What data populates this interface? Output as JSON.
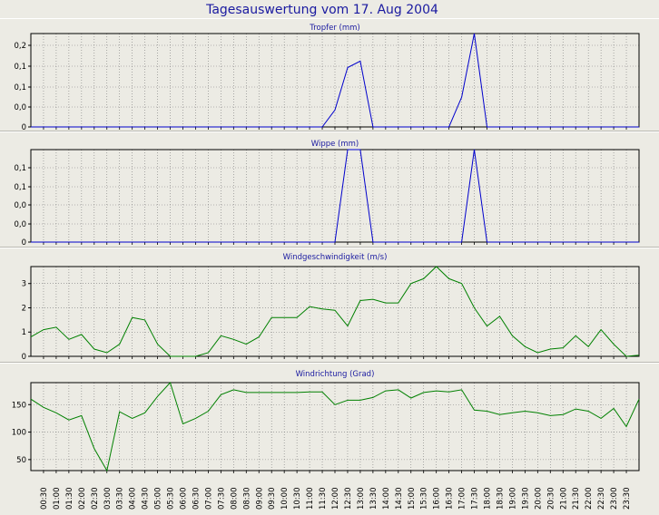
{
  "page_title": "Tagesauswertung vom 17. Aug 2004",
  "x_ticks": [
    "00:30",
    "01:00",
    "01:30",
    "02:00",
    "02:30",
    "03:00",
    "03:30",
    "04:00",
    "04:30",
    "05:00",
    "05:30",
    "06:00",
    "06:30",
    "07:00",
    "07:30",
    "08:00",
    "08:30",
    "09:00",
    "09:30",
    "10:00",
    "10:30",
    "11:00",
    "11:30",
    "12:00",
    "12:30",
    "13:00",
    "13:30",
    "14:00",
    "14:30",
    "15:00",
    "15:30",
    "16:00",
    "16:30",
    "17:00",
    "17:30",
    "18:00",
    "18:30",
    "19:00",
    "19:30",
    "20:00",
    "20:30",
    "21:00",
    "21:30",
    "22:00",
    "22:30",
    "23:00",
    "23:30"
  ],
  "colors": {
    "blue_series": "#0000cc",
    "green_series": "#008000",
    "title": "#1a1aa0",
    "panel_bg": "#ecebe4",
    "axis": "#000000",
    "grid": "#7a7a7a"
  },
  "chart_data": [
    {
      "type": "line",
      "title": "Tropfer (mm)",
      "y_tick_labels": [
        "0,2",
        "0,1",
        "0,1",
        "0,0",
        "0"
      ],
      "ylim": [
        0,
        0.22
      ],
      "grid": true,
      "x_unit": "hour_of_day",
      "series": [
        {
          "color": "#0000cc",
          "points": [
            [
              0,
              0
            ],
            [
              11.5,
              0
            ],
            [
              12,
              0.04
            ],
            [
              12.5,
              0.14
            ],
            [
              13,
              0.155
            ],
            [
              13.5,
              0
            ],
            [
              16.5,
              0
            ],
            [
              17,
              0.07
            ],
            [
              17.5,
              0.22
            ],
            [
              18,
              0
            ],
            [
              24,
              0
            ]
          ]
        }
      ]
    },
    {
      "type": "line",
      "title": "Wippe (mm)",
      "y_tick_labels": [
        "0,1",
        "0,1",
        "0,0",
        "0,0",
        "0"
      ],
      "ylim": [
        0,
        0.2
      ],
      "grid": true,
      "x_unit": "hour_of_day",
      "series": [
        {
          "color": "#0000cc",
          "points": [
            [
              0,
              0
            ],
            [
              12,
              0
            ],
            [
              12.5,
              0.2
            ],
            [
              13,
              0.2
            ],
            [
              13.5,
              0
            ],
            [
              17,
              0
            ],
            [
              17.5,
              0.2
            ],
            [
              18,
              0
            ],
            [
              24,
              0
            ]
          ]
        }
      ]
    },
    {
      "type": "line",
      "title": "Windgeschwindigkeit (m/s)",
      "y_tick_labels": [
        "3",
        "2",
        "1",
        "0"
      ],
      "ylim": [
        0,
        3.7
      ],
      "grid": true,
      "x_unit": "hour_of_day",
      "series": [
        {
          "color": "#008000",
          "points": [
            [
              0,
              0.8
            ],
            [
              0.5,
              1.1
            ],
            [
              1,
              1.2
            ],
            [
              1.5,
              0.7
            ],
            [
              2,
              0.9
            ],
            [
              2.5,
              0.3
            ],
            [
              3,
              0.15
            ],
            [
              3.5,
              0.5
            ],
            [
              4,
              1.6
            ],
            [
              4.5,
              1.5
            ],
            [
              5,
              0.5
            ],
            [
              5.5,
              0
            ],
            [
              6,
              0
            ],
            [
              6.5,
              0
            ],
            [
              7,
              0.15
            ],
            [
              7.5,
              0.85
            ],
            [
              8,
              0.7
            ],
            [
              8.5,
              0.5
            ],
            [
              9,
              0.8
            ],
            [
              9.5,
              1.6
            ],
            [
              10,
              1.6
            ],
            [
              10.5,
              1.6
            ],
            [
              11,
              2.05
            ],
            [
              11.5,
              1.95
            ],
            [
              12,
              1.9
            ],
            [
              12.5,
              1.25
            ],
            [
              13,
              2.3
            ],
            [
              13.5,
              2.35
            ],
            [
              14,
              2.2
            ],
            [
              14.5,
              2.2
            ],
            [
              15,
              3.0
            ],
            [
              15.5,
              3.2
            ],
            [
              16,
              3.75
            ],
            [
              16.5,
              3.2
            ],
            [
              17,
              3.0
            ],
            [
              17.5,
              2.0
            ],
            [
              18,
              1.25
            ],
            [
              18.5,
              1.65
            ],
            [
              19,
              0.85
            ],
            [
              19.5,
              0.4
            ],
            [
              20,
              0.15
            ],
            [
              20.5,
              0.3
            ],
            [
              21,
              0.35
            ],
            [
              21.5,
              0.85
            ],
            [
              22,
              0.4
            ],
            [
              22.5,
              1.1
            ],
            [
              23,
              0.5
            ],
            [
              23.5,
              0
            ],
            [
              24,
              0.05
            ]
          ]
        }
      ]
    },
    {
      "type": "line",
      "title": "Windrichtung (Grad)",
      "y_tick_labels": [
        "150",
        "100",
        "50"
      ],
      "ylim": [
        30,
        190
      ],
      "y_ticks": [
        150,
        100,
        50
      ],
      "grid": true,
      "x_unit": "hour_of_day",
      "series": [
        {
          "color": "#008000",
          "points": [
            [
              0,
              160
            ],
            [
              0.5,
              145
            ],
            [
              1,
              135
            ],
            [
              1.5,
              122
            ],
            [
              2,
              130
            ],
            [
              2.5,
              70
            ],
            [
              3,
              30
            ],
            [
              3.5,
              137
            ],
            [
              4,
              125
            ],
            [
              4.5,
              135
            ],
            [
              5,
              165
            ],
            [
              5.5,
              190
            ],
            [
              6,
              115
            ],
            [
              6.5,
              125
            ],
            [
              7,
              138
            ],
            [
              7.5,
              168
            ],
            [
              8,
              177
            ],
            [
              8.5,
              172
            ],
            [
              9,
              172
            ],
            [
              9.5,
              172
            ],
            [
              10,
              172
            ],
            [
              10.5,
              172
            ],
            [
              11,
              173
            ],
            [
              11.5,
              173
            ],
            [
              12,
              150
            ],
            [
              12.5,
              158
            ],
            [
              13,
              158
            ],
            [
              13.5,
              163
            ],
            [
              14,
              175
            ],
            [
              14.5,
              177
            ],
            [
              15,
              162
            ],
            [
              15.5,
              172
            ],
            [
              16,
              175
            ],
            [
              16.5,
              173
            ],
            [
              17,
              177
            ],
            [
              17.5,
              140
            ],
            [
              18,
              138
            ],
            [
              18.5,
              132
            ],
            [
              19,
              135
            ],
            [
              19.5,
              138
            ],
            [
              20,
              135
            ],
            [
              20.5,
              130
            ],
            [
              21,
              132
            ],
            [
              21.5,
              142
            ],
            [
              22,
              138
            ],
            [
              22.5,
              125
            ],
            [
              23,
              143
            ],
            [
              23.5,
              110
            ],
            [
              24,
              160
            ]
          ]
        }
      ]
    }
  ]
}
